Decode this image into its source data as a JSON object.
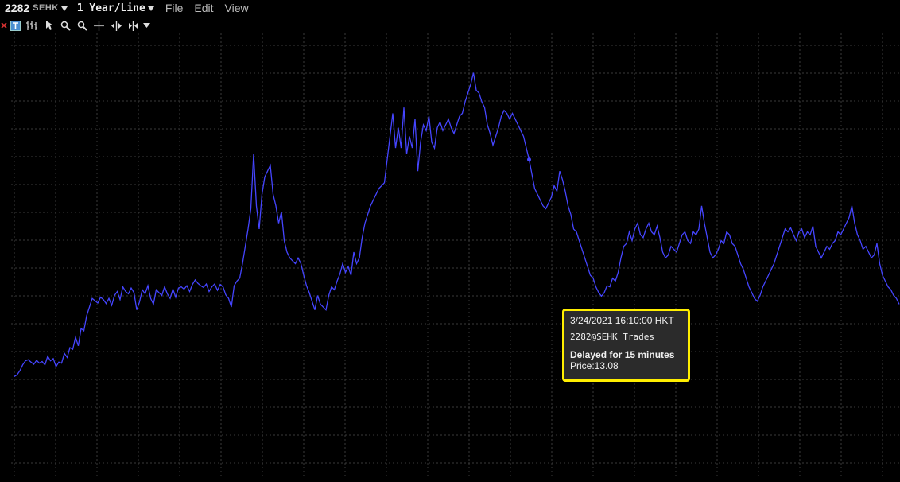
{
  "header": {
    "symbol": "2282",
    "exchange": "SEHK",
    "period": "1 Year/Line",
    "menu": [
      "File",
      "Edit",
      "View"
    ]
  },
  "toolbar": {
    "icons": [
      "close-icon",
      "text-tool-icon",
      "bar-chart-icon",
      "cursor-icon",
      "zoom-in-icon",
      "zoom-out-icon",
      "crosshair-icon",
      "expand-horizontal-icon",
      "contract-horizontal-icon",
      "dropdown-caret-icon"
    ]
  },
  "tooltip": {
    "datetime": "3/24/2021 16:10:00 HKT",
    "source": "2282@SEHK Trades",
    "delay": "Delayed for 15 minutes",
    "price": "Price:13.08"
  },
  "colors": {
    "line": "#4545ff",
    "grid": "#3a3a3a",
    "tooltip_border": "#ffee00",
    "background": "#000000"
  },
  "chart_data": {
    "type": "line",
    "title": "",
    "xlabel": "",
    "ylabel": "",
    "grid": true,
    "series": [
      {
        "values": [
          0.05,
          0.08,
          0.15,
          0.25,
          0.32,
          0.34,
          0.3,
          0.26,
          0.33,
          0.28,
          0.31,
          0.25,
          0.4,
          0.32,
          0.36,
          0.22,
          0.3,
          0.28,
          0.45,
          0.38,
          0.55,
          0.52,
          0.73,
          0.58,
          0.88,
          0.84,
          1.1,
          1.25,
          1.4,
          1.36,
          1.32,
          1.42,
          1.38,
          1.31,
          1.4,
          1.28,
          1.45,
          1.52,
          1.38,
          1.6,
          1.52,
          1.48,
          1.58,
          1.5,
          1.2,
          1.34,
          1.55,
          1.48,
          1.62,
          1.4,
          1.3,
          1.55,
          1.5,
          1.45,
          1.6,
          1.48,
          1.4,
          1.56,
          1.42,
          1.58,
          1.6,
          1.56,
          1.62,
          1.52,
          1.64,
          1.72,
          1.66,
          1.62,
          1.59,
          1.65,
          1.52,
          1.6,
          1.65,
          1.54,
          1.64,
          1.6,
          1.46,
          1.4,
          1.25,
          1.62,
          1.7,
          1.75,
          2.0,
          2.3,
          2.6,
          2.95,
          3.9,
          3.0,
          2.6,
          3.2,
          3.5,
          3.6,
          3.7,
          3.2,
          3.0,
          2.7,
          2.9,
          2.4,
          2.2,
          2.1,
          2.05,
          2.0,
          2.1,
          2.0,
          1.8,
          1.62,
          1.5,
          1.35,
          1.2,
          1.45,
          1.3,
          1.25,
          1.2,
          1.45,
          1.6,
          1.55,
          1.7,
          1.82,
          2.0,
          1.85,
          1.95,
          1.8,
          2.2,
          2.0,
          2.1,
          2.45,
          2.7,
          2.85,
          3.0,
          3.1,
          3.2,
          3.3,
          3.35,
          3.4,
          3.8,
          4.2,
          4.6,
          4.0,
          4.35,
          4.0,
          4.7,
          3.9,
          4.2,
          4.0,
          4.5,
          3.6,
          4.1,
          4.4,
          4.3,
          4.55,
          4.1,
          4.0,
          4.35,
          4.45,
          4.3,
          4.4,
          4.5,
          4.35,
          4.25,
          4.4,
          4.55,
          4.6,
          4.8,
          4.95,
          5.1,
          5.3,
          5.0,
          4.95,
          4.8,
          4.7,
          4.4,
          4.25,
          4.05,
          4.2,
          4.35,
          4.55,
          4.65,
          4.6,
          4.5,
          4.6,
          4.5,
          4.4,
          4.3,
          4.2,
          4.0,
          3.8,
          3.55,
          3.3,
          3.2,
          3.1,
          3.0,
          2.95,
          3.05,
          3.15,
          3.35,
          3.25,
          3.6,
          3.45,
          3.25,
          3.0,
          2.85,
          2.6,
          2.55,
          2.4,
          2.25,
          2.1,
          1.95,
          1.8,
          1.75,
          1.6,
          1.5,
          1.44,
          1.5,
          1.62,
          1.6,
          1.75,
          1.7,
          1.85,
          2.1,
          2.3,
          2.35,
          2.55,
          2.4,
          2.6,
          2.7,
          2.5,
          2.45,
          2.6,
          2.7,
          2.55,
          2.5,
          2.65,
          2.45,
          2.2,
          2.1,
          2.15,
          2.3,
          2.25,
          2.2,
          2.35,
          2.5,
          2.55,
          2.4,
          2.35,
          2.55,
          2.5,
          2.6,
          3.0,
          2.7,
          2.45,
          2.2,
          2.1,
          2.15,
          2.25,
          2.4,
          2.35,
          2.55,
          2.5,
          2.35,
          2.3,
          2.15,
          2.0,
          1.9,
          1.75,
          1.6,
          1.5,
          1.4,
          1.35,
          1.45,
          1.6,
          1.7,
          1.8,
          1.9,
          2.0,
          2.15,
          2.3,
          2.45,
          2.6,
          2.55,
          2.62,
          2.5,
          2.4,
          2.55,
          2.6,
          2.45,
          2.55,
          2.5,
          2.65,
          2.3,
          2.2,
          2.1,
          2.2,
          2.3,
          2.25,
          2.35,
          2.4,
          2.55,
          2.5,
          2.6,
          2.7,
          2.8,
          3.0,
          2.7,
          2.5,
          2.4,
          2.25,
          2.3,
          2.2,
          2.1,
          2.15,
          2.35,
          2.0,
          1.8,
          1.7,
          1.6,
          1.55,
          1.45,
          1.4,
          1.3
        ]
      }
    ],
    "highlight_index": 185,
    "highlight_price": 13.08
  }
}
